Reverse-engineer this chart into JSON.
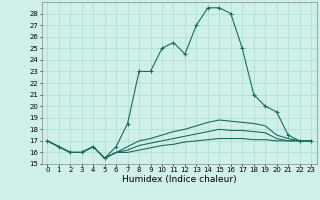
{
  "xlabel": "Humidex (Indice chaleur)",
  "background_color": "#cff0ea",
  "grid_color": "#aaddcc",
  "line_color": "#1a6b5a",
  "x": [
    0,
    1,
    2,
    3,
    4,
    5,
    6,
    7,
    8,
    9,
    10,
    11,
    12,
    13,
    14,
    15,
    16,
    17,
    18,
    19,
    20,
    21,
    22,
    23
  ],
  "y_main": [
    17,
    16.5,
    16,
    16,
    16.5,
    15.5,
    16.5,
    18.5,
    23,
    23,
    25,
    25.5,
    24.5,
    27,
    28.5,
    28.5,
    28,
    25,
    21,
    20,
    19.5,
    17.5,
    17,
    17
  ],
  "y_line2": [
    17,
    16.5,
    16,
    16,
    16.5,
    15.5,
    16,
    16.5,
    17,
    17.2,
    17.5,
    17.8,
    18,
    18.3,
    18.6,
    18.8,
    18.7,
    18.6,
    18.5,
    18.3,
    17.5,
    17.2,
    17,
    17
  ],
  "y_line3": [
    17,
    16.5,
    16,
    16,
    16.5,
    15.5,
    16,
    16.2,
    16.6,
    16.8,
    17,
    17.2,
    17.4,
    17.6,
    17.8,
    18.0,
    17.9,
    17.9,
    17.8,
    17.7,
    17.2,
    17,
    17,
    17
  ],
  "y_line4": [
    17,
    16.5,
    16,
    16,
    16.5,
    15.5,
    16,
    16.0,
    16.2,
    16.4,
    16.6,
    16.7,
    16.9,
    17.0,
    17.1,
    17.2,
    17.2,
    17.2,
    17.1,
    17.1,
    17.0,
    17,
    17,
    17
  ],
  "ylim": [
    15,
    29
  ],
  "xlim": [
    -0.5,
    23.5
  ],
  "yticks": [
    15,
    16,
    17,
    18,
    19,
    20,
    21,
    22,
    23,
    24,
    25,
    26,
    27,
    28
  ],
  "xticks": [
    0,
    1,
    2,
    3,
    4,
    5,
    6,
    7,
    8,
    9,
    10,
    11,
    12,
    13,
    14,
    15,
    16,
    17,
    18,
    19,
    20,
    21,
    22,
    23
  ],
  "marker": "+",
  "markersize": 3,
  "linewidth": 0.8,
  "fontsize_ticks": 5,
  "fontsize_xlabel": 6.5
}
